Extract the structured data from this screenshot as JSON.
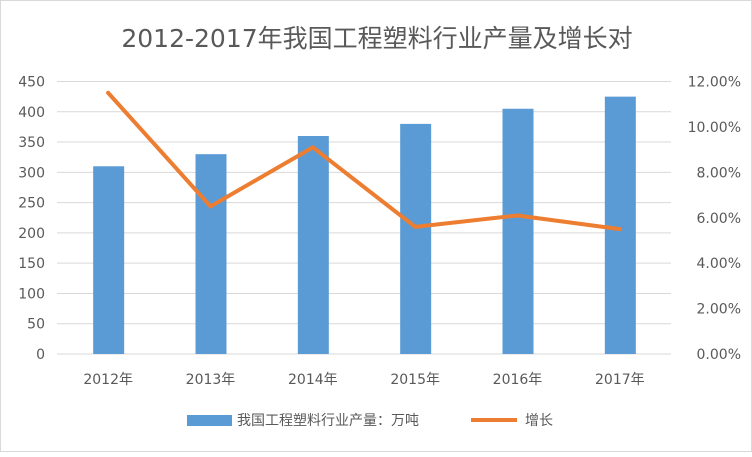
{
  "chart_data": {
    "type": "bar+line",
    "title": "2012-2017年我国工程塑料行业产量及增长对",
    "categories": [
      "2012年",
      "2013年",
      "2014年",
      "2015年",
      "2016年",
      "2017年"
    ],
    "series": [
      {
        "name": "我国工程塑料行业产量：万吨",
        "type": "bar",
        "axis": "left",
        "values": [
          310,
          330,
          360,
          380,
          405,
          425
        ],
        "color": "#5b9bd5"
      },
      {
        "name": "增长",
        "type": "line",
        "axis": "right",
        "values": [
          11.5,
          6.5,
          9.1,
          5.6,
          6.1,
          5.5
        ],
        "color": "#ed7d31"
      }
    ],
    "y_left": {
      "min": 0,
      "max": 450,
      "step": 50,
      "ticks": [
        "0",
        "50",
        "100",
        "150",
        "200",
        "250",
        "300",
        "350",
        "400",
        "450"
      ]
    },
    "y_right": {
      "min": 0,
      "max": 12,
      "step": 2,
      "ticks": [
        "0.00%",
        "2.00%",
        "4.00%",
        "6.00%",
        "8.00%",
        "10.00%",
        "12.00%"
      ]
    },
    "grid": true,
    "legend": "bottom"
  }
}
